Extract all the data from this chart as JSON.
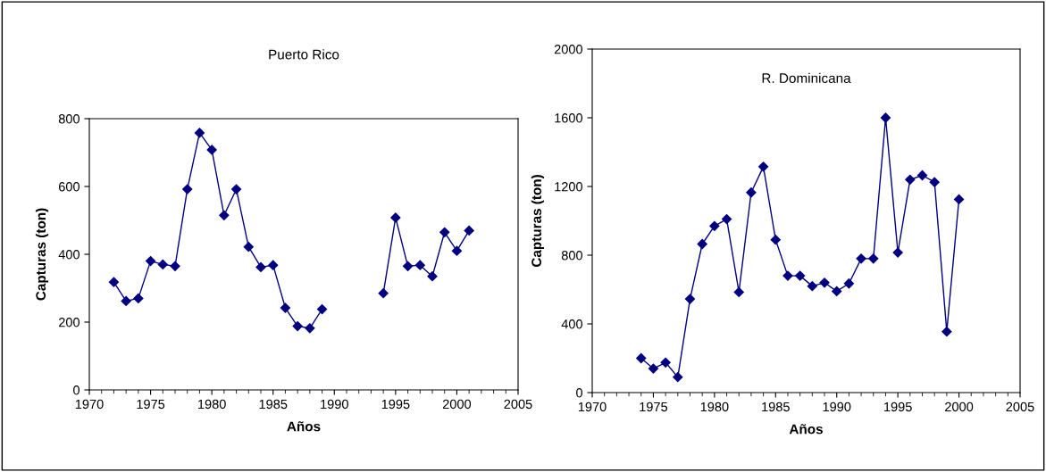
{
  "chart_data": [
    {
      "type": "line",
      "title": "Puerto Rico",
      "xlabel": "Años",
      "ylabel": "Capturas (ton)",
      "x": [
        1972,
        1973,
        1974,
        1975,
        1976,
        1977,
        1978,
        1979,
        1980,
        1981,
        1982,
        1983,
        1984,
        1985,
        1986,
        1987,
        1988,
        1989,
        1990,
        1991,
        1992,
        1993,
        1994,
        1995,
        1996,
        1997,
        1998,
        1999,
        2000,
        2001
      ],
      "series": [
        {
          "color": "#000080",
          "values": [
            318,
            262,
            270,
            380,
            370,
            365,
            592,
            758,
            708,
            515,
            592,
            422,
            362,
            368,
            242,
            188,
            182,
            238,
            null,
            null,
            null,
            null,
            285,
            508,
            365,
            368,
            335,
            465,
            410,
            470
          ]
        }
      ],
      "xlim": [
        1970,
        2005
      ],
      "xticks": [
        1970,
        1975,
        1980,
        1985,
        1990,
        1995,
        2000,
        2005
      ],
      "ylim": [
        0,
        800
      ],
      "yticks": [
        0,
        200,
        400,
        600,
        800
      ],
      "marker": "diamond",
      "line_style": "solid"
    },
    {
      "type": "line",
      "title": "R. Dominicana",
      "xlabel": "Años",
      "ylabel": "Capturas (ton)",
      "x": [
        1974,
        1975,
        1976,
        1977,
        1978,
        1979,
        1980,
        1981,
        1982,
        1983,
        1984,
        1985,
        1986,
        1987,
        1988,
        1989,
        1990,
        1991,
        1992,
        1993,
        1994,
        1995,
        1996,
        1997,
        1998,
        1999,
        2000
      ],
      "series": [
        {
          "color": "#000080",
          "values": [
            200,
            140,
            175,
            90,
            545,
            865,
            970,
            1010,
            585,
            1165,
            1315,
            890,
            680,
            680,
            620,
            640,
            590,
            635,
            780,
            780,
            1600,
            815,
            1240,
            1265,
            1225,
            355,
            1125
          ]
        }
      ],
      "xlim": [
        1970,
        2005
      ],
      "xticks": [
        1970,
        1975,
        1980,
        1985,
        1990,
        1995,
        2000,
        2005
      ],
      "ylim": [
        0,
        2000
      ],
      "yticks": [
        0,
        400,
        800,
        1200,
        1600,
        2000
      ],
      "marker": "diamond",
      "line_style": "solid"
    }
  ]
}
